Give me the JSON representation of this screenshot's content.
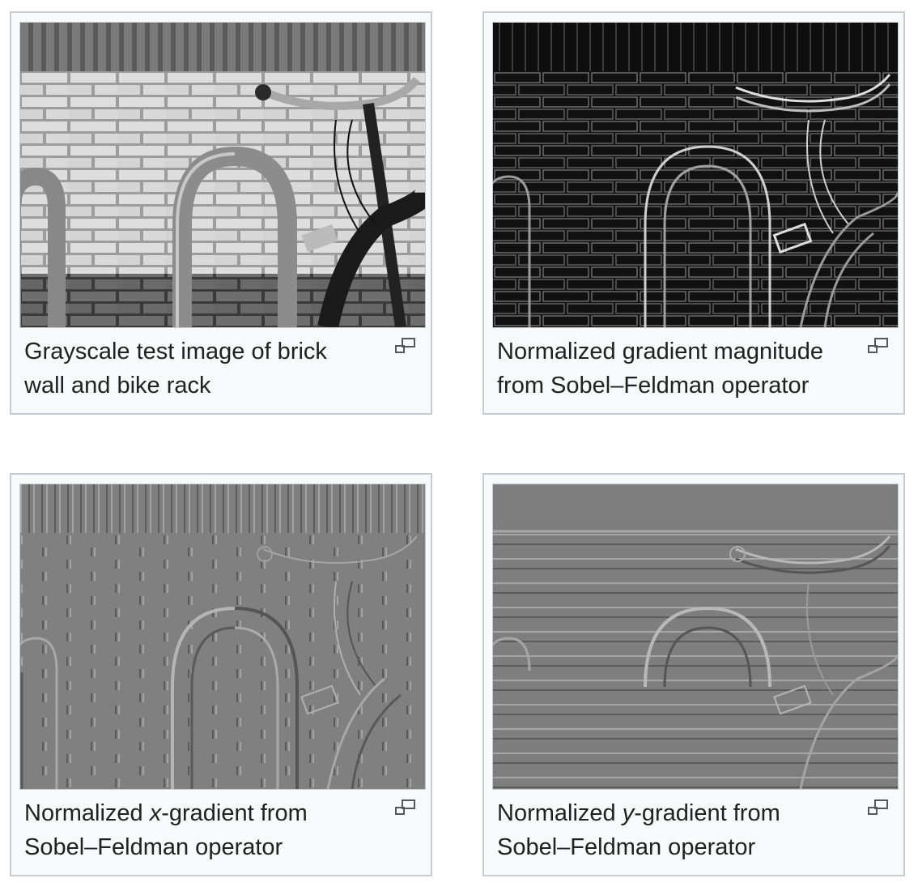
{
  "thumbnails": [
    {
      "caption": "Grayscale test image of brick wall and bike rack",
      "magnify_icon": "enlarge-icon"
    },
    {
      "caption": "Normalized gradient magnitude from Sobel–Feldman operator",
      "magnify_icon": "enlarge-icon"
    },
    {
      "caption_before": "Normalized ",
      "caption_italic": "x",
      "caption_after": "-gradient from Sobel–Feldman operator",
      "magnify_icon": "enlarge-icon"
    },
    {
      "caption_before": "Normalized ",
      "caption_italic": "y",
      "caption_after": "-gradient from Sobel–Feldman operator",
      "magnify_icon": "enlarge-icon"
    }
  ],
  "colors": {
    "frame_background": "#f8f9fa",
    "frame_border": "#c8ccd1",
    "text": "#202122"
  }
}
